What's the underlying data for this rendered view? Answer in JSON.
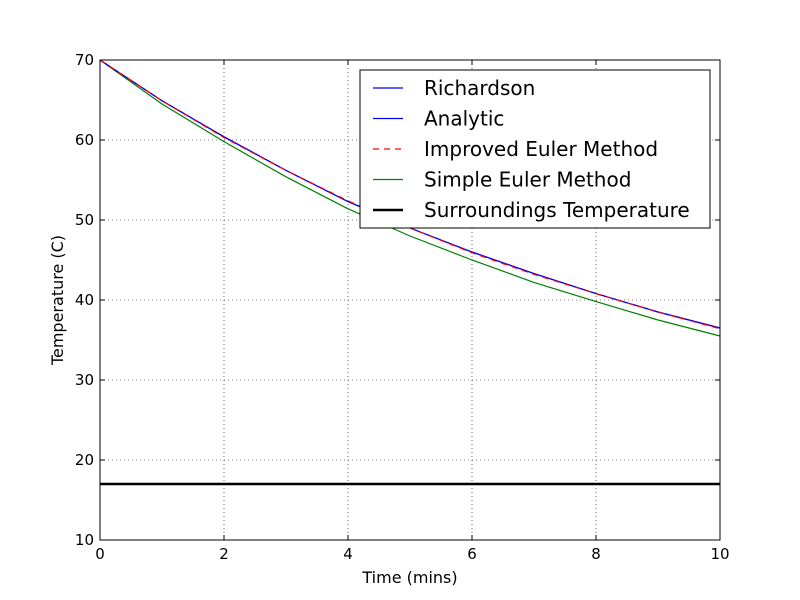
{
  "chart_data": {
    "type": "line",
    "xlabel": "Time (mins)",
    "ylabel": "Temperature (C)",
    "xlim": [
      0,
      10
    ],
    "ylim": [
      10,
      70
    ],
    "xticks": [
      0,
      2,
      4,
      6,
      8,
      10
    ],
    "yticks": [
      10,
      20,
      30,
      40,
      50,
      60,
      70
    ],
    "grid": true,
    "legend_position": "top-right",
    "series": [
      {
        "name": "Richardson",
        "color": "#0000ff",
        "style": "solid",
        "x": [
          0,
          1,
          2,
          3,
          4,
          5,
          6,
          7,
          8,
          9,
          10
        ],
        "y": [
          70.0,
          64.9,
          60.4,
          56.2,
          52.3,
          49.0,
          46.0,
          43.3,
          40.8,
          38.5,
          36.5
        ]
      },
      {
        "name": "Analytic",
        "color": "#0000ff",
        "style": "solid",
        "x": [
          0,
          1,
          2,
          3,
          4,
          5,
          6,
          7,
          8,
          9,
          10
        ],
        "y": [
          70.0,
          64.9,
          60.4,
          56.2,
          52.3,
          49.0,
          46.0,
          43.3,
          40.8,
          38.5,
          36.5
        ]
      },
      {
        "name": "Improved Euler Method",
        "color": "#ff0000",
        "style": "dashed",
        "x": [
          0,
          1,
          2,
          3,
          4,
          5,
          6,
          7,
          8,
          9,
          10
        ],
        "y": [
          70.0,
          64.9,
          60.3,
          56.2,
          52.4,
          49.0,
          45.9,
          43.2,
          40.8,
          38.5,
          36.4
        ]
      },
      {
        "name": "Simple Euler Method",
        "color": "#008000",
        "style": "solid",
        "x": [
          0,
          1,
          2,
          3,
          4,
          5,
          6,
          7,
          8,
          9,
          10
        ],
        "y": [
          70.0,
          64.5,
          59.8,
          55.4,
          51.4,
          48.0,
          45.0,
          42.2,
          39.8,
          37.5,
          35.5
        ]
      },
      {
        "name": "Surroundings Temperature",
        "color": "#000000",
        "style": "thick",
        "x": [
          0,
          10
        ],
        "y": [
          17,
          17
        ]
      }
    ]
  }
}
